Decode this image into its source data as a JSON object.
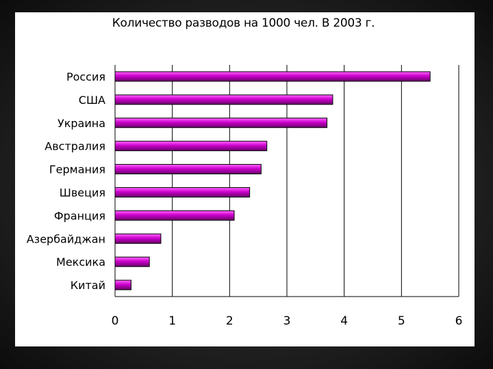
{
  "chart_data": {
    "type": "bar",
    "orientation": "horizontal",
    "title": "Количество разводов на 1000 чел. В 2003 г.",
    "categories": [
      "Россия",
      "США",
      "Украина",
      "Австралия",
      "Германия",
      "Швеция",
      "Франция",
      "Азербайджан",
      "Мексика",
      "Китай"
    ],
    "values": [
      5.5,
      3.8,
      3.7,
      2.65,
      2.55,
      2.35,
      2.08,
      0.8,
      0.6,
      0.28
    ],
    "xlim": [
      0,
      6
    ],
    "xticks": [
      "0",
      "1",
      "2",
      "3",
      "4",
      "5",
      "6"
    ],
    "xlabel": "",
    "ylabel": "",
    "grid": true,
    "legend": "none",
    "colors": {
      "bar_light": "#ff66ff",
      "bar_mid": "#cc00cc",
      "bar_dark": "#660066",
      "background": "#ffffff",
      "frame": "#222222"
    }
  }
}
